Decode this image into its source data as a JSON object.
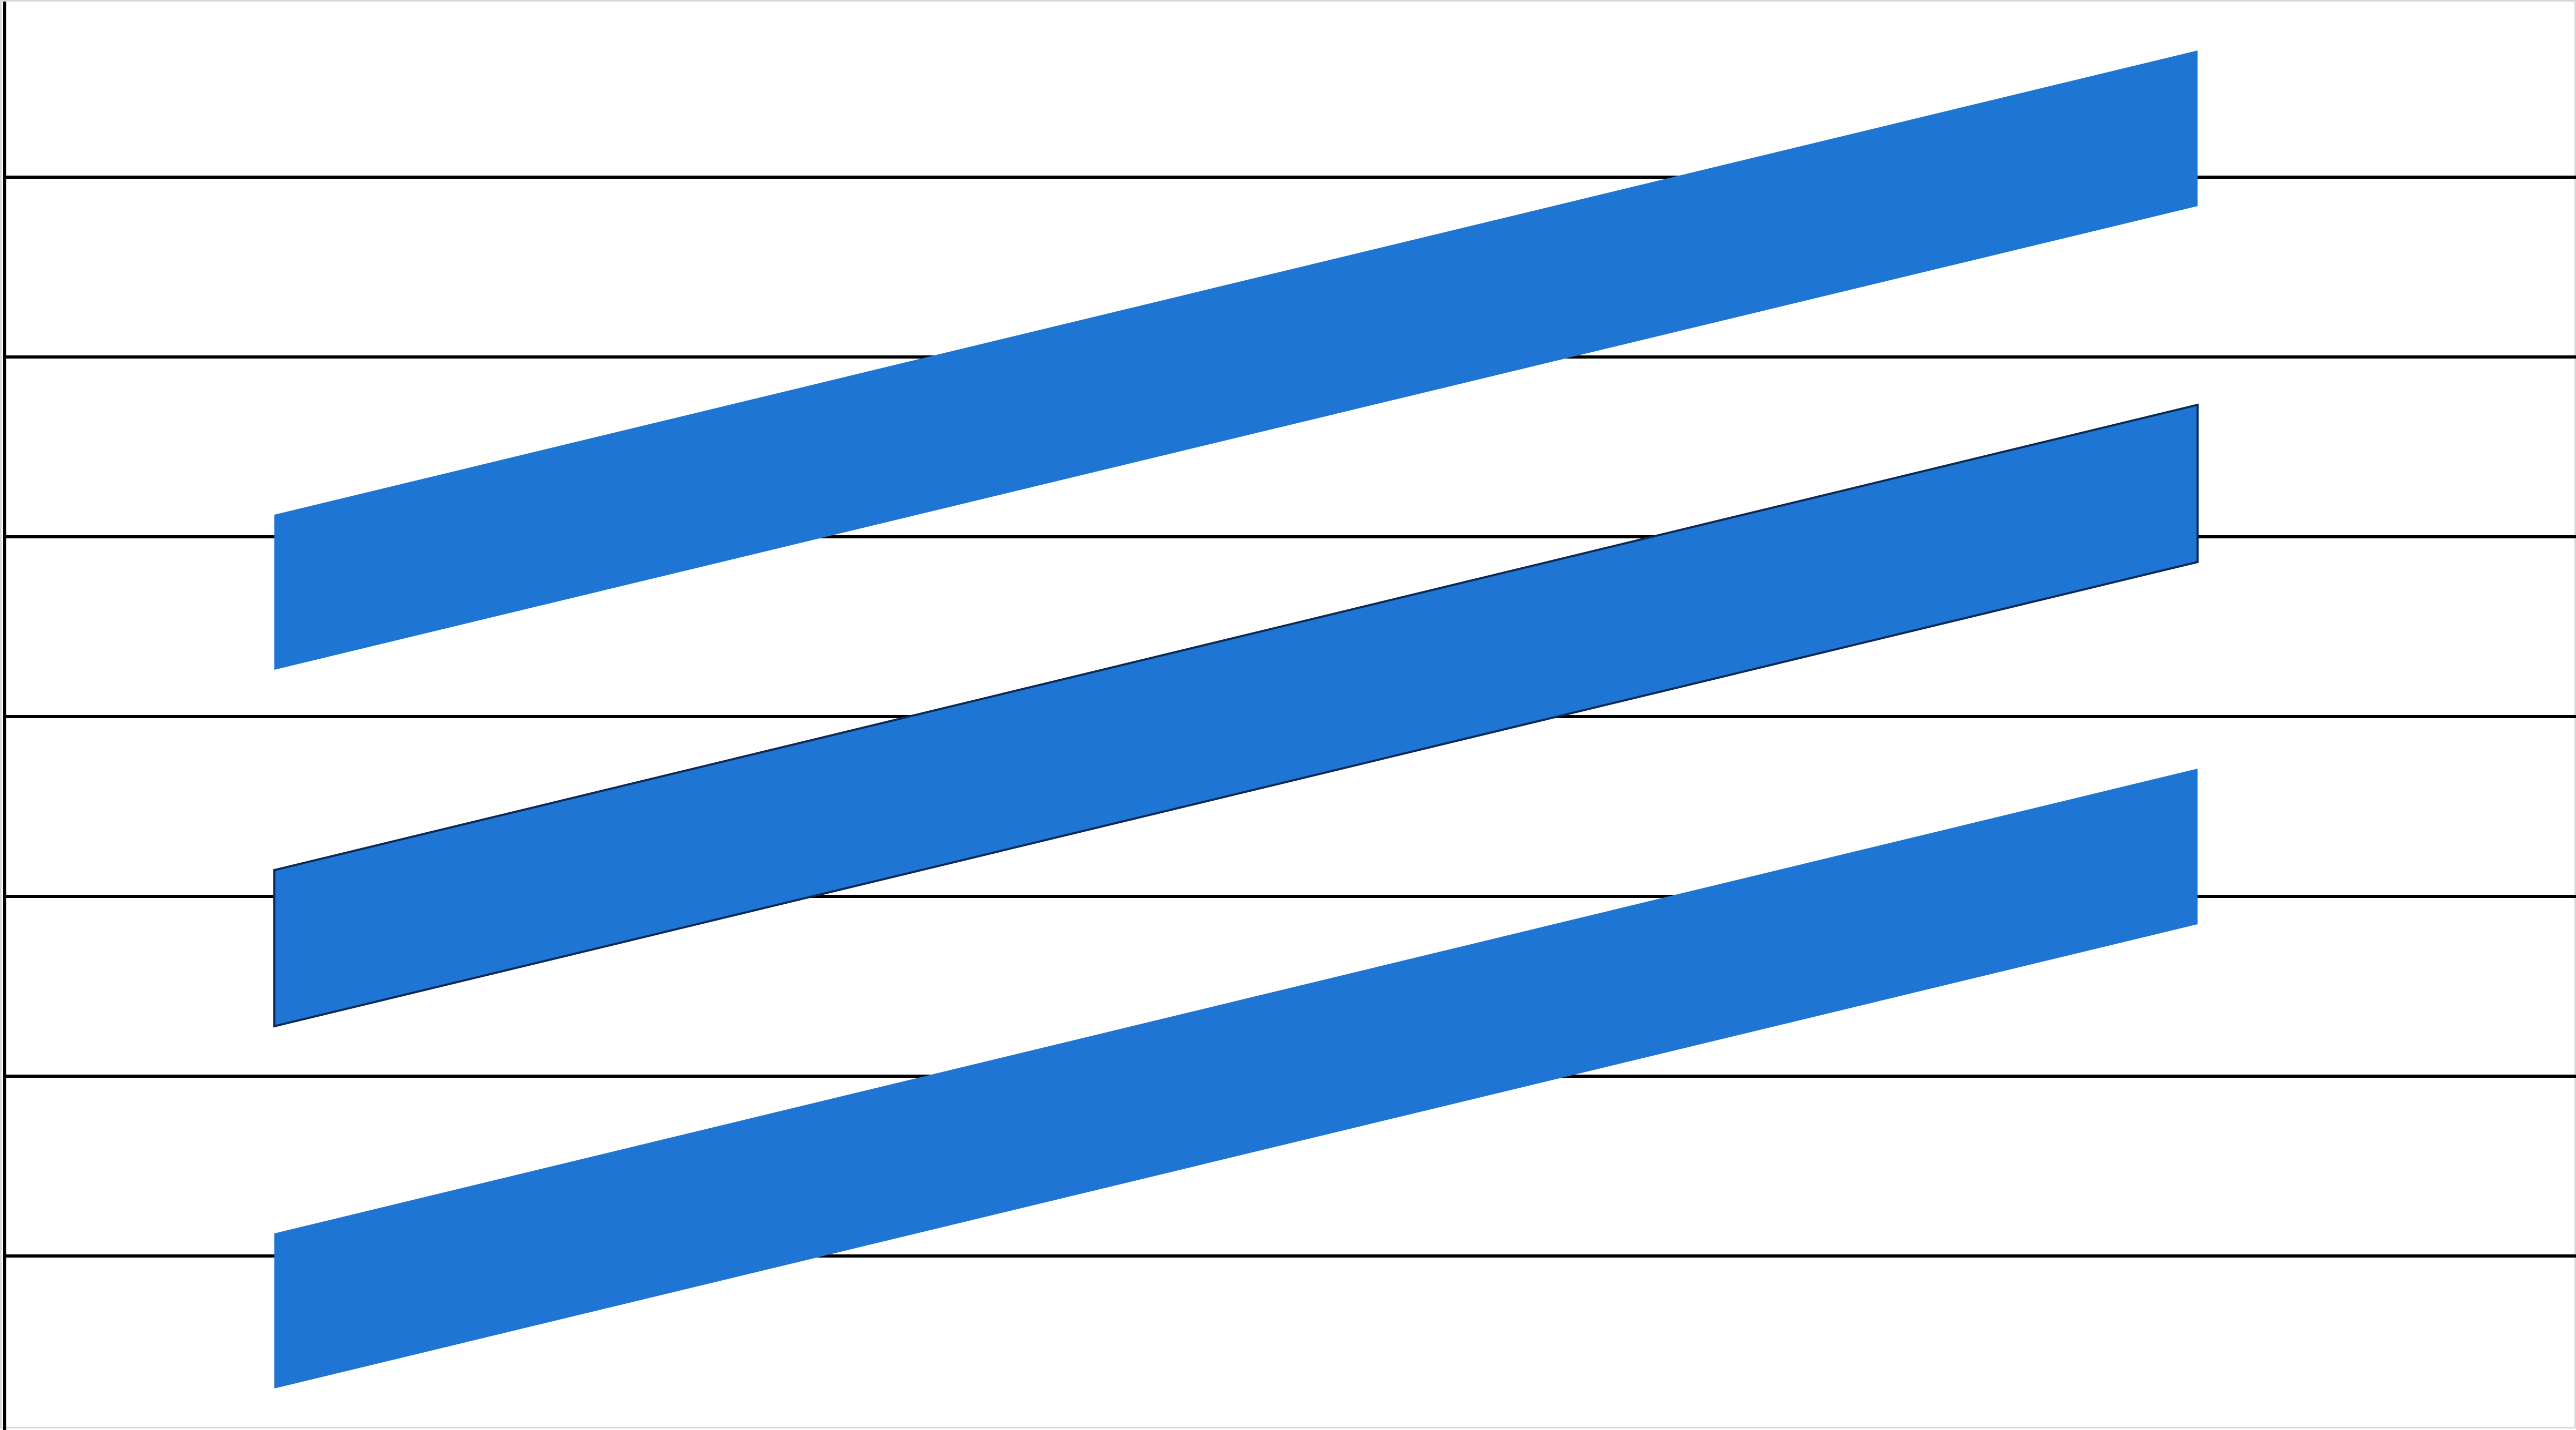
{
  "diagram": {
    "colors": {
      "band_fill": "#1f75d4",
      "band_outline": "#0b2a55",
      "rule": "#000000",
      "background": "#ffffff"
    },
    "horizontal_rules": 7,
    "bands": [
      {
        "id": "band-top",
        "outlined": false
      },
      {
        "id": "band-middle",
        "outlined": true
      },
      {
        "id": "band-bottom",
        "outlined": false
      }
    ]
  }
}
